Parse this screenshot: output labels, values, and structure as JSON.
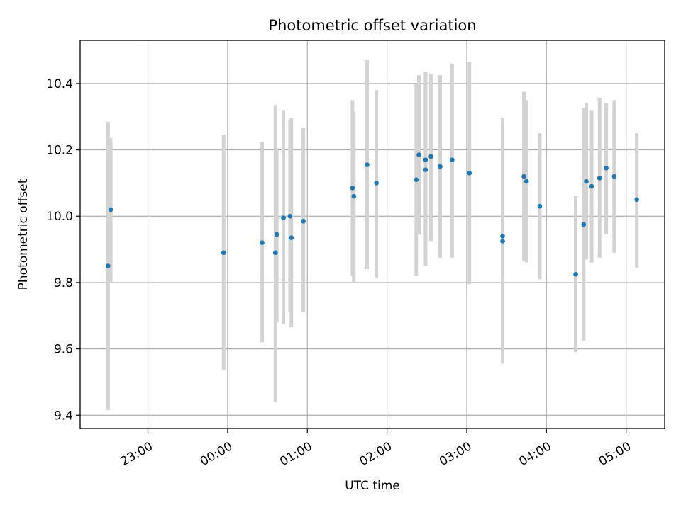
{
  "chart_data": {
    "type": "scatter",
    "title": "Photometric offset variation",
    "xlabel": "UTC time",
    "ylabel": "Photometric offset",
    "grid": true,
    "xlim": [
      "22:09",
      "05:29"
    ],
    "ylim": [
      9.36,
      10.53
    ],
    "x_ticks": [
      "23:00",
      "00:00",
      "01:00",
      "02:00",
      "03:00",
      "04:00",
      "05:00"
    ],
    "y_ticks": [
      "9.4",
      "9.6",
      "9.8",
      "10.0",
      "10.2",
      "10.4"
    ],
    "colors": {
      "point": "#1f77b4",
      "errorbar": "#d3d3d3",
      "grid": "#b0b0b0"
    },
    "points": [
      {
        "t": "22:30",
        "y": 9.85,
        "lo": 9.415,
        "hi": 10.285
      },
      {
        "t": "22:32",
        "y": 10.02,
        "lo": 9.8,
        "hi": 10.235
      },
      {
        "t": "23:57",
        "y": 9.89,
        "lo": 9.535,
        "hi": 10.245
      },
      {
        "t": "00:26",
        "y": 9.92,
        "lo": 9.62,
        "hi": 10.225
      },
      {
        "t": "00:36",
        "y": 9.89,
        "lo": 9.44,
        "hi": 10.335
      },
      {
        "t": "00:37",
        "y": 9.945,
        "lo": 9.68,
        "hi": 10.205
      },
      {
        "t": "00:42",
        "y": 9.995,
        "lo": 9.675,
        "hi": 10.32
      },
      {
        "t": "00:47",
        "y": 10.0,
        "lo": 9.71,
        "hi": 10.29
      },
      {
        "t": "00:48",
        "y": 9.935,
        "lo": 9.665,
        "hi": 10.295
      },
      {
        "t": "00:57",
        "y": 9.985,
        "lo": 9.71,
        "hi": 10.265
      },
      {
        "t": "01:34",
        "y": 10.085,
        "lo": 9.82,
        "hi": 10.35
      },
      {
        "t": "01:35",
        "y": 10.06,
        "lo": 9.8,
        "hi": 10.315
      },
      {
        "t": "01:45",
        "y": 10.155,
        "lo": 9.84,
        "hi": 10.47
      },
      {
        "t": "01:52",
        "y": 10.1,
        "lo": 9.815,
        "hi": 10.38
      },
      {
        "t": "02:22",
        "y": 10.11,
        "lo": 9.82,
        "hi": 10.4
      },
      {
        "t": "02:24",
        "y": 10.185,
        "lo": 9.945,
        "hi": 10.425
      },
      {
        "t": "02:29",
        "y": 10.14,
        "lo": 9.85,
        "hi": 10.435
      },
      {
        "t": "02:29",
        "y": 10.17,
        "lo": 9.9,
        "hi": 10.43
      },
      {
        "t": "02:33",
        "y": 10.18,
        "lo": 9.925,
        "hi": 10.43
      },
      {
        "t": "02:40",
        "y": 10.15,
        "lo": 9.875,
        "hi": 10.425
      },
      {
        "t": "02:49",
        "y": 10.17,
        "lo": 9.875,
        "hi": 10.46
      },
      {
        "t": "03:02",
        "y": 10.13,
        "lo": 9.795,
        "hi": 10.465
      },
      {
        "t": "03:27",
        "y": 9.925,
        "lo": 9.555,
        "hi": 10.295
      },
      {
        "t": "03:27",
        "y": 9.94,
        "lo": 9.6,
        "hi": 10.28
      },
      {
        "t": "03:43",
        "y": 10.12,
        "lo": 9.865,
        "hi": 10.375
      },
      {
        "t": "03:45",
        "y": 10.105,
        "lo": 9.86,
        "hi": 10.35
      },
      {
        "t": "03:55",
        "y": 10.03,
        "lo": 9.81,
        "hi": 10.25
      },
      {
        "t": "04:22",
        "y": 9.825,
        "lo": 9.59,
        "hi": 10.06
      },
      {
        "t": "04:28",
        "y": 9.975,
        "lo": 9.625,
        "hi": 10.325
      },
      {
        "t": "04:30",
        "y": 10.105,
        "lo": 9.87,
        "hi": 10.34
      },
      {
        "t": "04:34",
        "y": 10.09,
        "lo": 9.86,
        "hi": 10.32
      },
      {
        "t": "04:40",
        "y": 10.115,
        "lo": 9.875,
        "hi": 10.355
      },
      {
        "t": "04:45",
        "y": 10.145,
        "lo": 9.945,
        "hi": 10.34
      },
      {
        "t": "04:51",
        "y": 10.12,
        "lo": 9.89,
        "hi": 10.35
      },
      {
        "t": "05:08",
        "y": 10.05,
        "lo": 9.845,
        "hi": 10.25
      }
    ]
  }
}
